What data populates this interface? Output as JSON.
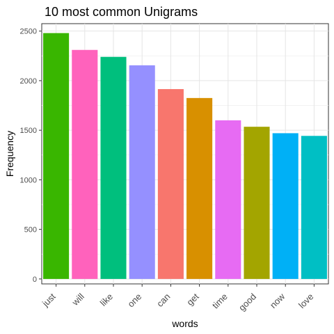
{
  "chart_data": {
    "type": "bar",
    "title": "10 most common Unigrams",
    "xlabel": "words",
    "ylabel": "Frequency",
    "categories": [
      "just",
      "will",
      "like",
      "one",
      "can",
      "get",
      "time",
      "good",
      "now",
      "love"
    ],
    "values": [
      2480,
      2310,
      2240,
      2155,
      1915,
      1825,
      1600,
      1535,
      1470,
      1443
    ],
    "colors": [
      "#39B600",
      "#FF62BC",
      "#00BF7D",
      "#9590FF",
      "#F8766D",
      "#D89000",
      "#E76BF3",
      "#A3A500",
      "#00B0F6",
      "#00BFC4"
    ],
    "ylim": [
      -50,
      2575
    ],
    "yticks": [
      0,
      500,
      1000,
      1500,
      2000,
      2500
    ],
    "grid": true,
    "legend": "none"
  }
}
